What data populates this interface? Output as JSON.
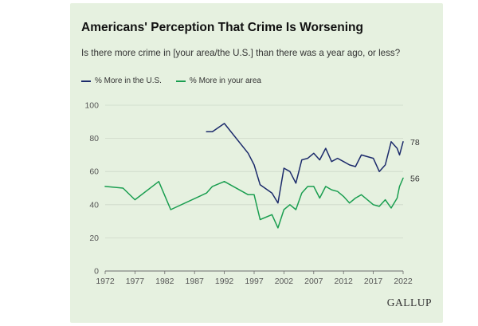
{
  "chart_data": {
    "type": "line",
    "title": "Americans' Perception That Crime Is Worsening",
    "subtitle": "Is there more crime in [your area/the U.S.] than there was a year ago, or less?",
    "xlabel": "",
    "ylabel": "",
    "xlim": [
      1972,
      2022
    ],
    "ylim": [
      0,
      100
    ],
    "xticks": [
      1972,
      1977,
      1982,
      1987,
      1992,
      1997,
      2002,
      2007,
      2012,
      2017,
      2022
    ],
    "yticks": [
      0,
      20,
      40,
      60,
      80,
      100
    ],
    "legend_position": "top-left",
    "series": [
      {
        "name": "% More in the U.S.",
        "color": "#1b2a6b",
        "end_label": "78",
        "points": [
          [
            1989,
            84
          ],
          [
            1990,
            84
          ],
          [
            1992,
            89
          ],
          [
            1996,
            71
          ],
          [
            1997,
            64
          ],
          [
            1998,
            52
          ],
          [
            2000,
            47
          ],
          [
            2001,
            41
          ],
          [
            2002,
            62
          ],
          [
            2003,
            60
          ],
          [
            2004,
            53
          ],
          [
            2005,
            67
          ],
          [
            2006,
            68
          ],
          [
            2007,
            71
          ],
          [
            2008,
            67
          ],
          [
            2009,
            74
          ],
          [
            2010,
            66
          ],
          [
            2011,
            68
          ],
          [
            2012,
            66
          ],
          [
            2013,
            64
          ],
          [
            2014,
            63
          ],
          [
            2015,
            70
          ],
          [
            2016,
            69
          ],
          [
            2017,
            68
          ],
          [
            2018,
            60
          ],
          [
            2019,
            64
          ],
          [
            2020,
            78
          ],
          [
            2021,
            74
          ],
          [
            2021.4,
            70
          ],
          [
            2022,
            78
          ]
        ]
      },
      {
        "name": "% More in your area",
        "color": "#1a9e50",
        "end_label": "56",
        "points": [
          [
            1972,
            51
          ],
          [
            1975,
            50
          ],
          [
            1977,
            43
          ],
          [
            1981,
            54
          ],
          [
            1983,
            37
          ],
          [
            1989,
            47
          ],
          [
            1990,
            51
          ],
          [
            1992,
            54
          ],
          [
            1996,
            46
          ],
          [
            1997,
            46
          ],
          [
            1998,
            31
          ],
          [
            2000,
            34
          ],
          [
            2001,
            26
          ],
          [
            2002,
            37
          ],
          [
            2003,
            40
          ],
          [
            2004,
            37
          ],
          [
            2005,
            47
          ],
          [
            2006,
            51
          ],
          [
            2007,
            51
          ],
          [
            2008,
            44
          ],
          [
            2009,
            51
          ],
          [
            2010,
            49
          ],
          [
            2011,
            48
          ],
          [
            2012,
            45
          ],
          [
            2013,
            41
          ],
          [
            2014,
            44
          ],
          [
            2015,
            46
          ],
          [
            2016,
            43
          ],
          [
            2017,
            40
          ],
          [
            2018,
            39
          ],
          [
            2019,
            43
          ],
          [
            2020,
            38
          ],
          [
            2021,
            44
          ],
          [
            2021.4,
            51
          ],
          [
            2022,
            56
          ]
        ]
      }
    ]
  },
  "brand": "GALLUP",
  "colors": {
    "background": "#e6f1e0",
    "grid": "#cdd8c8",
    "axis": "#6b6b6b",
    "tick_text": "#555555"
  }
}
